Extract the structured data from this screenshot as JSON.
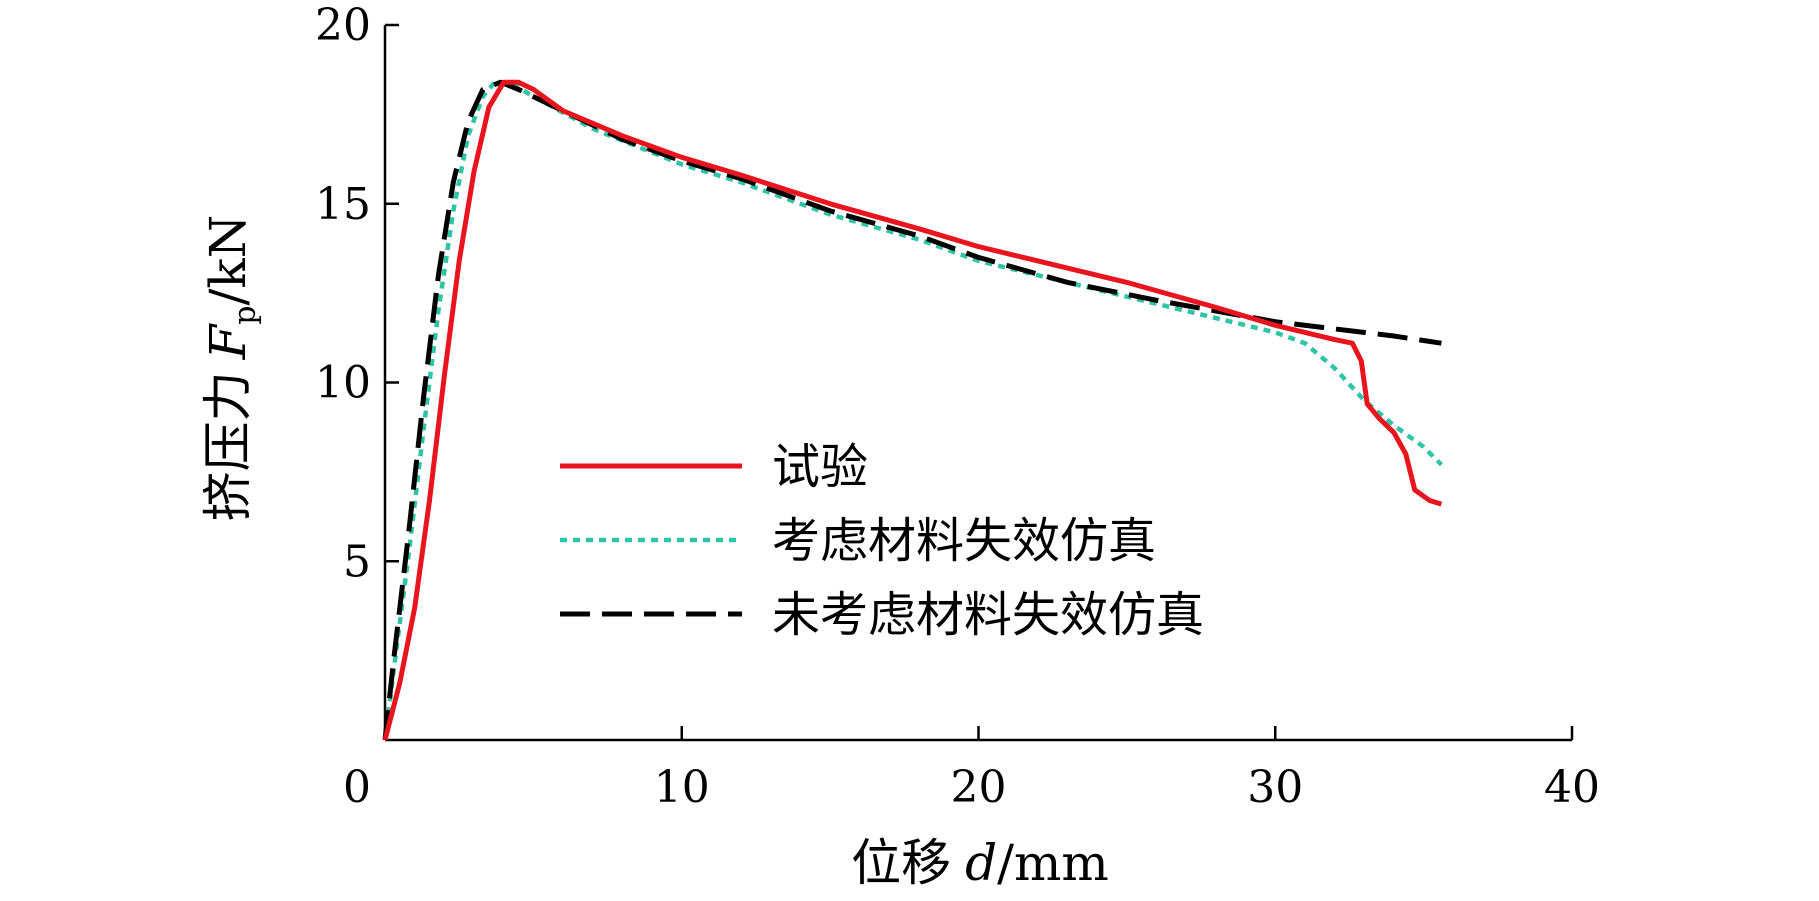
{
  "chart_data": {
    "type": "line",
    "xlabel": {
      "prefix": "位移",
      "symbol": "d",
      "unit": "/mm"
    },
    "ylabel": {
      "prefix": "挤压力",
      "symbol": "F",
      "subscript": "p",
      "unit": "/kN"
    },
    "xlim": [
      0,
      40
    ],
    "ylim": [
      0,
      20
    ],
    "xticks": [
      0,
      10,
      20,
      30,
      40
    ],
    "yticks": [
      5,
      10,
      15,
      20
    ],
    "grid": false,
    "legend_position": "center",
    "series": [
      {
        "name": "试验",
        "color": "#e8141e",
        "style": "solid",
        "points": [
          [
            0,
            0
          ],
          [
            0.5,
            1.6
          ],
          [
            1,
            3.7
          ],
          [
            1.5,
            6.7
          ],
          [
            2,
            10.2
          ],
          [
            2.5,
            13.4
          ],
          [
            3,
            15.9
          ],
          [
            3.5,
            17.7
          ],
          [
            4,
            18.4
          ],
          [
            4.5,
            18.4
          ],
          [
            5,
            18.2
          ],
          [
            6,
            17.6
          ],
          [
            8,
            16.9
          ],
          [
            10,
            16.3
          ],
          [
            12,
            15.8
          ],
          [
            15,
            15.0
          ],
          [
            18,
            14.3
          ],
          [
            20,
            13.8
          ],
          [
            25,
            12.8
          ],
          [
            28,
            12.1
          ],
          [
            30,
            11.6
          ],
          [
            32,
            11.2
          ],
          [
            32.6,
            11.1
          ],
          [
            32.9,
            10.6
          ],
          [
            33.1,
            9.4
          ],
          [
            33.5,
            9.0
          ],
          [
            34,
            8.6
          ],
          [
            34.4,
            8.0
          ],
          [
            34.7,
            7.0
          ],
          [
            35.2,
            6.7
          ],
          [
            35.6,
            6.6
          ]
        ]
      },
      {
        "name": "考虑材料失效仿真",
        "color": "#2ec4a6",
        "style": "dotted",
        "points": [
          [
            0,
            0
          ],
          [
            0.3,
            2.0
          ],
          [
            0.8,
            5.2
          ],
          [
            1.3,
            8.7
          ],
          [
            1.8,
            12.0
          ],
          [
            2.3,
            14.8
          ],
          [
            2.8,
            16.9
          ],
          [
            3.3,
            18.0
          ],
          [
            3.7,
            18.4
          ],
          [
            4.2,
            18.4
          ],
          [
            5,
            18.0
          ],
          [
            7,
            17.1
          ],
          [
            10,
            16.1
          ],
          [
            12,
            15.6
          ],
          [
            15,
            14.7
          ],
          [
            18,
            14.0
          ],
          [
            20,
            13.4
          ],
          [
            23,
            12.8
          ],
          [
            25,
            12.4
          ],
          [
            28,
            11.8
          ],
          [
            30,
            11.4
          ],
          [
            31,
            11.1
          ],
          [
            32,
            10.4
          ],
          [
            33,
            9.5
          ],
          [
            34,
            8.8
          ],
          [
            35,
            8.2
          ],
          [
            35.6,
            7.7
          ]
        ]
      },
      {
        "name": "未考虑材料失效仿真",
        "color": "#000000",
        "style": "dashed",
        "points": [
          [
            0,
            0
          ],
          [
            0.3,
            2.3
          ],
          [
            0.8,
            5.8
          ],
          [
            1.3,
            9.6
          ],
          [
            1.8,
            13.0
          ],
          [
            2.3,
            15.6
          ],
          [
            2.8,
            17.3
          ],
          [
            3.3,
            18.2
          ],
          [
            3.9,
            18.4
          ],
          [
            4.5,
            18.2
          ],
          [
            6,
            17.6
          ],
          [
            8,
            16.8
          ],
          [
            10,
            16.2
          ],
          [
            12,
            15.7
          ],
          [
            15,
            14.8
          ],
          [
            18,
            14.1
          ],
          [
            20,
            13.5
          ],
          [
            23,
            12.8
          ],
          [
            26,
            12.3
          ],
          [
            28,
            12.0
          ],
          [
            30,
            11.7
          ],
          [
            32,
            11.5
          ],
          [
            34,
            11.3
          ],
          [
            35.6,
            11.1
          ]
        ]
      }
    ]
  }
}
